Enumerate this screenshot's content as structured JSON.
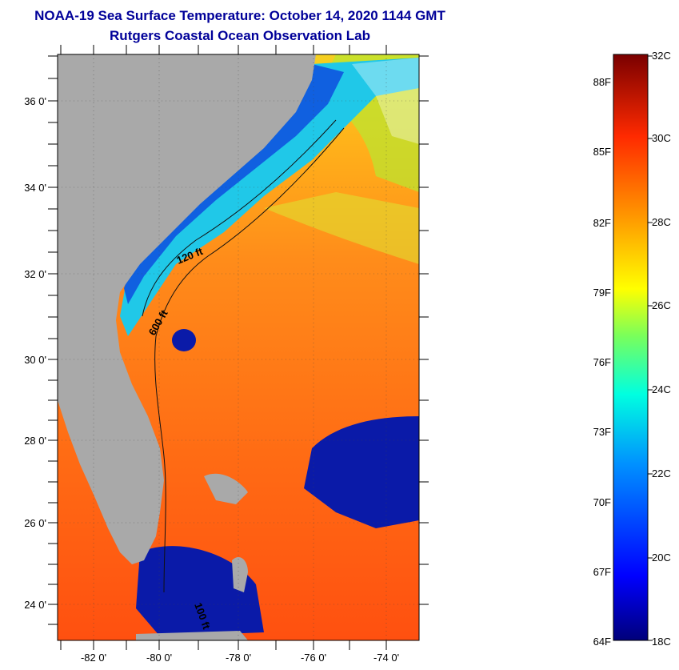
{
  "header": {
    "title_line1": "NOAA-19 Sea Surface Temperature:  October 14, 2020 1144 GMT",
    "title_line2": "Rutgers Coastal Ocean Observation Lab"
  },
  "map": {
    "lat_labels": [
      "36 0'",
      "34 0'",
      "32 0'",
      "30 0'",
      "28 0'",
      "26 0'",
      "24 0'"
    ],
    "lon_labels": [
      "-82 0'",
      "-80 0'",
      "-78 0'",
      "-76 0'",
      "-74 0'"
    ],
    "contours": {
      "c120": "120 ft",
      "c600": "600 ft",
      "c100": "100 ft"
    },
    "colors": {
      "land": "#a9a9a9",
      "warm": "#ff7a1a",
      "cold": "#0a1aa8"
    }
  },
  "colorbar": {
    "fahrenheit": [
      "88F",
      "85F",
      "82F",
      "79F",
      "76F",
      "73F",
      "70F",
      "67F",
      "64F"
    ],
    "celsius": [
      "32C",
      "30C",
      "28C",
      "26C",
      "24C",
      "22C",
      "20C",
      "18C"
    ],
    "range_c": [
      18,
      32
    ]
  }
}
